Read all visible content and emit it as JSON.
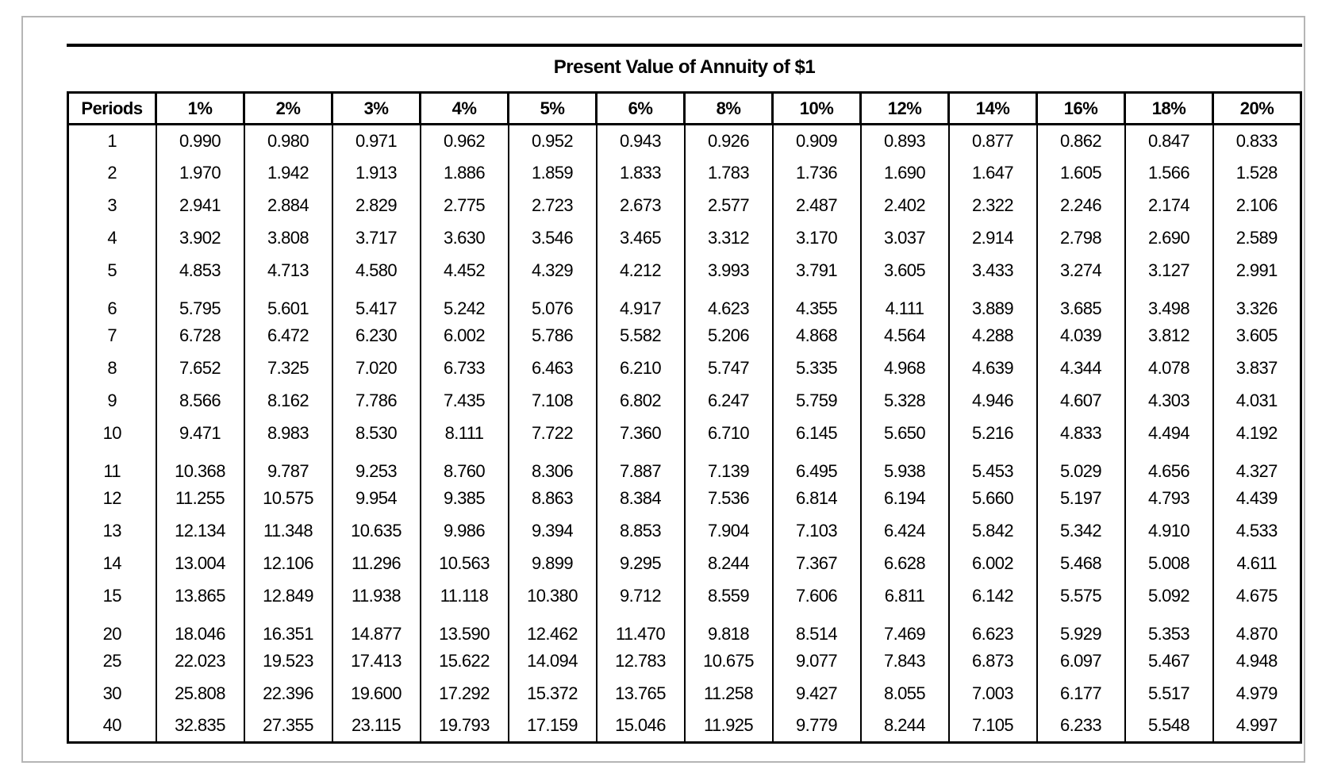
{
  "title": "Present Value of Annuity of $1",
  "colors": {
    "text": "#000000",
    "table_border": "#000000",
    "frame_border": "#b5b5b5",
    "background": "#ffffff"
  },
  "table": {
    "header": [
      "Periods",
      "1%",
      "2%",
      "3%",
      "4%",
      "5%",
      "6%",
      "8%",
      "10%",
      "12%",
      "14%",
      "16%",
      "18%",
      "20%"
    ],
    "groups": [
      {
        "rows": [
          {
            "period": "1",
            "values": [
              "0.990",
              "0.980",
              "0.971",
              "0.962",
              "0.952",
              "0.943",
              "0.926",
              "0.909",
              "0.893",
              "0.877",
              "0.862",
              "0.847",
              "0.833"
            ]
          },
          {
            "period": "2",
            "values": [
              "1.970",
              "1.942",
              "1.913",
              "1.886",
              "1.859",
              "1.833",
              "1.783",
              "1.736",
              "1.690",
              "1.647",
              "1.605",
              "1.566",
              "1.528"
            ]
          },
          {
            "period": "3",
            "values": [
              "2.941",
              "2.884",
              "2.829",
              "2.775",
              "2.723",
              "2.673",
              "2.577",
              "2.487",
              "2.402",
              "2.322",
              "2.246",
              "2.174",
              "2.106"
            ]
          },
          {
            "period": "4",
            "values": [
              "3.902",
              "3.808",
              "3.717",
              "3.630",
              "3.546",
              "3.465",
              "3.312",
              "3.170",
              "3.037",
              "2.914",
              "2.798",
              "2.690",
              "2.589"
            ]
          },
          {
            "period": "5",
            "values": [
              "4.853",
              "4.713",
              "4.580",
              "4.452",
              "4.329",
              "4.212",
              "3.993",
              "3.791",
              "3.605",
              "3.433",
              "3.274",
              "3.127",
              "2.991"
            ]
          }
        ]
      },
      {
        "rows": [
          {
            "period": "6",
            "values": [
              "5.795",
              "5.601",
              "5.417",
              "5.242",
              "5.076",
              "4.917",
              "4.623",
              "4.355",
              "4.111",
              "3.889",
              "3.685",
              "3.498",
              "3.326"
            ]
          },
          {
            "period": "7",
            "values": [
              "6.728",
              "6.472",
              "6.230",
              "6.002",
              "5.786",
              "5.582",
              "5.206",
              "4.868",
              "4.564",
              "4.288",
              "4.039",
              "3.812",
              "3.605"
            ]
          },
          {
            "period": "8",
            "values": [
              "7.652",
              "7.325",
              "7.020",
              "6.733",
              "6.463",
              "6.210",
              "5.747",
              "5.335",
              "4.968",
              "4.639",
              "4.344",
              "4.078",
              "3.837"
            ]
          },
          {
            "period": "9",
            "values": [
              "8.566",
              "8.162",
              "7.786",
              "7.435",
              "7.108",
              "6.802",
              "6.247",
              "5.759",
              "5.328",
              "4.946",
              "4.607",
              "4.303",
              "4.031"
            ]
          },
          {
            "period": "10",
            "values": [
              "9.471",
              "8.983",
              "8.530",
              "8.111",
              "7.722",
              "7.360",
              "6.710",
              "6.145",
              "5.650",
              "5.216",
              "4.833",
              "4.494",
              "4.192"
            ]
          }
        ]
      },
      {
        "rows": [
          {
            "period": "11",
            "values": [
              "10.368",
              "9.787",
              "9.253",
              "8.760",
              "8.306",
              "7.887",
              "7.139",
              "6.495",
              "5.938",
              "5.453",
              "5.029",
              "4.656",
              "4.327"
            ]
          },
          {
            "period": "12",
            "values": [
              "11.255",
              "10.575",
              "9.954",
              "9.385",
              "8.863",
              "8.384",
              "7.536",
              "6.814",
              "6.194",
              "5.660",
              "5.197",
              "4.793",
              "4.439"
            ]
          },
          {
            "period": "13",
            "values": [
              "12.134",
              "11.348",
              "10.635",
              "9.986",
              "9.394",
              "8.853",
              "7.904",
              "7.103",
              "6.424",
              "5.842",
              "5.342",
              "4.910",
              "4.533"
            ]
          },
          {
            "period": "14",
            "values": [
              "13.004",
              "12.106",
              "11.296",
              "10.563",
              "9.899",
              "9.295",
              "8.244",
              "7.367",
              "6.628",
              "6.002",
              "5.468",
              "5.008",
              "4.611"
            ]
          },
          {
            "period": "15",
            "values": [
              "13.865",
              "12.849",
              "11.938",
              "11.118",
              "10.380",
              "9.712",
              "8.559",
              "7.606",
              "6.811",
              "6.142",
              "5.575",
              "5.092",
              "4.675"
            ]
          }
        ]
      },
      {
        "rows": [
          {
            "period": "20",
            "values": [
              "18.046",
              "16.351",
              "14.877",
              "13.590",
              "12.462",
              "11.470",
              "9.818",
              "8.514",
              "7.469",
              "6.623",
              "5.929",
              "5.353",
              "4.870"
            ]
          },
          {
            "period": "25",
            "values": [
              "22.023",
              "19.523",
              "17.413",
              "15.622",
              "14.094",
              "12.783",
              "10.675",
              "9.077",
              "7.843",
              "6.873",
              "6.097",
              "5.467",
              "4.948"
            ]
          },
          {
            "period": "30",
            "values": [
              "25.808",
              "22.396",
              "19.600",
              "17.292",
              "15.372",
              "13.765",
              "11.258",
              "9.427",
              "8.055",
              "7.003",
              "6.177",
              "5.517",
              "4.979"
            ]
          },
          {
            "period": "40",
            "values": [
              "32.835",
              "27.355",
              "23.115",
              "19.793",
              "17.159",
              "15.046",
              "11.925",
              "9.779",
              "8.244",
              "7.105",
              "6.233",
              "5.548",
              "4.997"
            ]
          }
        ]
      }
    ]
  }
}
